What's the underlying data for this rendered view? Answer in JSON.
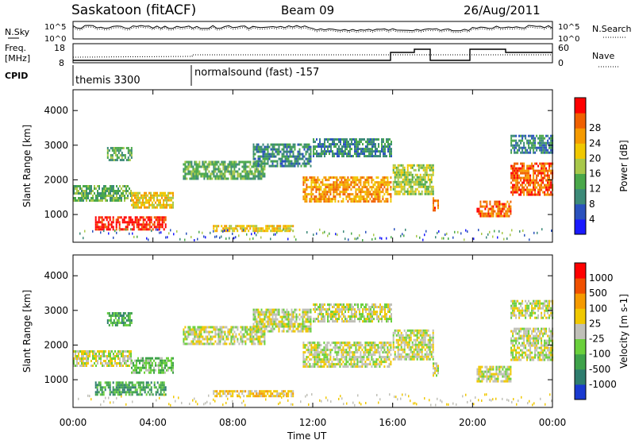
{
  "header": {
    "title": "Saskatoon (fitACF)",
    "beam": "Beam 09",
    "date": "26/Aug/2011"
  },
  "top_panels": {
    "nsky_label": "N.Sky",
    "nsky_ticks": [
      "10^5",
      "10^0"
    ],
    "nsearch_label": "N.Search",
    "freq_label_1": "Freq.",
    "freq_label_2": "[MHz]",
    "freq_ticks": [
      "18",
      "8"
    ],
    "nave_ticks": [
      "60",
      "0"
    ],
    "nave_label": "Nave",
    "cpid_label": "CPID",
    "cpid_segments": [
      {
        "label": "themis 3300",
        "start_hour": 0
      },
      {
        "label": "normalsound (fast) -157",
        "start_hour": 6
      }
    ]
  },
  "chart_data": [
    {
      "type": "heatmap",
      "ylabel": "Slant Range [km]",
      "xlabel": "Time UT",
      "x_ticks": [
        "00:00",
        "04:00",
        "08:00",
        "12:00",
        "16:00",
        "20:00",
        "00:00"
      ],
      "xlim_hours": [
        0,
        24
      ],
      "ylim_km": [
        200,
        4600
      ],
      "y_ticks": [
        1000,
        2000,
        3000,
        4000
      ],
      "colorbar": {
        "label": "Power [dB]",
        "ticks": [
          "4",
          "8",
          "12",
          "16",
          "20",
          "24",
          "28"
        ],
        "colors": [
          "#1a1aff",
          "#2a52be",
          "#3c8a78",
          "#4aa84a",
          "#a8c84a",
          "#f0c800",
          "#f59a00",
          "#f06000",
          "#ff0000"
        ]
      },
      "regions": [
        {
          "x": [
            0,
            2.9
          ],
          "y": [
            1400,
            1850
          ],
          "level": 3
        },
        {
          "x": [
            2.9,
            5.0
          ],
          "y": [
            1200,
            1650
          ],
          "level": 5
        },
        {
          "x": [
            1.1,
            4.6
          ],
          "y": [
            600,
            950
          ],
          "level": 8
        },
        {
          "x": [
            1.7,
            2.9
          ],
          "y": [
            2550,
            2950
          ],
          "level": 3
        },
        {
          "x": [
            5.5,
            9.6
          ],
          "y": [
            2050,
            2550
          ],
          "level": 3
        },
        {
          "x": [
            7.0,
            11.0
          ],
          "y": [
            550,
            700
          ],
          "level": 5
        },
        {
          "x": [
            9.0,
            11.9
          ],
          "y": [
            2400,
            3050
          ],
          "level": 2
        },
        {
          "x": [
            11.5,
            15.9
          ],
          "y": [
            1350,
            2100
          ],
          "level": 6
        },
        {
          "x": [
            12.0,
            15.9
          ],
          "y": [
            2700,
            3200
          ],
          "level": 2
        },
        {
          "x": [
            16.0,
            18.0
          ],
          "y": [
            1600,
            2450
          ],
          "level": 4
        },
        {
          "x": [
            18.0,
            18.3
          ],
          "y": [
            1100,
            1500
          ],
          "level": 7
        },
        {
          "x": [
            20.2,
            21.9
          ],
          "y": [
            950,
            1400
          ],
          "level": 7
        },
        {
          "x": [
            21.9,
            24.0
          ],
          "y": [
            1600,
            2500
          ],
          "level": 7
        },
        {
          "x": [
            21.9,
            24.0
          ],
          "y": [
            2800,
            3300
          ],
          "level": 2
        }
      ]
    },
    {
      "type": "heatmap",
      "ylabel": "Slant Range [km]",
      "xlabel": "Time UT",
      "x_ticks": [
        "00:00",
        "04:00",
        "08:00",
        "12:00",
        "16:00",
        "20:00",
        "00:00"
      ],
      "xlim_hours": [
        0,
        24
      ],
      "ylim_km": [
        200,
        4600
      ],
      "y_ticks": [
        1000,
        2000,
        3000,
        4000
      ],
      "colorbar": {
        "label": "Velocity [m s-1]",
        "ticks": [
          "1000",
          "500",
          "100",
          "25",
          "-25",
          "-100",
          "-500",
          "-1000"
        ],
        "colors": [
          "#1a3ad0",
          "#2e7d6e",
          "#3ea24a",
          "#6ad03c",
          "#c0c0b8",
          "#f0c800",
          "#f59a00",
          "#f05000",
          "#ff0000"
        ]
      },
      "regions": [
        {
          "x": [
            0,
            2.9
          ],
          "y": [
            1400,
            1850
          ],
          "level": 4
        },
        {
          "x": [
            2.9,
            5.0
          ],
          "y": [
            1200,
            1650
          ],
          "level": 3
        },
        {
          "x": [
            1.1,
            4.6
          ],
          "y": [
            600,
            950
          ],
          "level": 2
        },
        {
          "x": [
            1.7,
            2.9
          ],
          "y": [
            2550,
            2950
          ],
          "level": 2
        },
        {
          "x": [
            5.5,
            9.6
          ],
          "y": [
            2050,
            2550
          ],
          "level": 4
        },
        {
          "x": [
            7.0,
            11.0
          ],
          "y": [
            550,
            700
          ],
          "level": 5
        },
        {
          "x": [
            9.0,
            11.9
          ],
          "y": [
            2400,
            3050
          ],
          "level": 4
        },
        {
          "x": [
            11.5,
            15.9
          ],
          "y": [
            1350,
            2100
          ],
          "level": 4
        },
        {
          "x": [
            12.0,
            15.9
          ],
          "y": [
            2700,
            3200
          ],
          "level": 4
        },
        {
          "x": [
            16.0,
            18.0
          ],
          "y": [
            1600,
            2450
          ],
          "level": 4
        },
        {
          "x": [
            18.0,
            18.3
          ],
          "y": [
            1100,
            1500
          ],
          "level": 4
        },
        {
          "x": [
            20.2,
            21.9
          ],
          "y": [
            950,
            1400
          ],
          "level": 4
        },
        {
          "x": [
            21.9,
            24.0
          ],
          "y": [
            1600,
            2500
          ],
          "level": 4
        },
        {
          "x": [
            21.9,
            24.0
          ],
          "y": [
            2800,
            3300
          ],
          "level": 4
        }
      ]
    }
  ]
}
